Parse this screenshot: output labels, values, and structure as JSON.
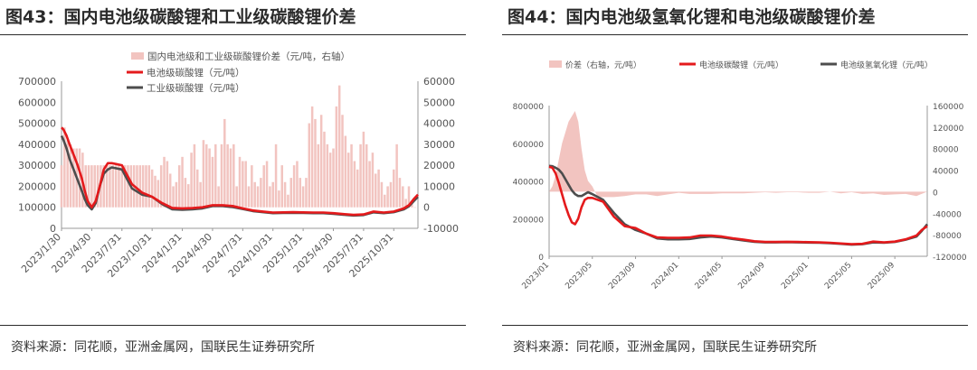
{
  "left": {
    "title": "图43：国内电池级碳酸锂和工业级碳酸锂价差",
    "source": "资料来源：同花顺，亚洲金属网，国联民生证券研究所",
    "chart_data": {
      "type": "line",
      "legend": [
        "国内电池级和工业级碳酸锂价差（元/吨，右轴）",
        "电池级碳酸锂（元/吨）",
        "工业级碳酸锂（元/吨）"
      ],
      "colors": {
        "spread": "#f2c4c0",
        "battery": "#e41a1c",
        "industrial": "#4d4d4d"
      },
      "x_ticks": [
        "2023/1/30",
        "2023/4/30",
        "2023/7/31",
        "2023/10/31",
        "2024/1/31",
        "2024/4/30",
        "2024/7/31",
        "2024/10/31",
        "2025/1/31",
        "2025/4/30",
        "2025/7/31",
        "2025/10/31"
      ],
      "y_left_ticks": [
        "0",
        "100000",
        "200000",
        "300000",
        "400000",
        "500000",
        "600000",
        "700000"
      ],
      "y_right_ticks": [
        "-10000",
        "0",
        "10000",
        "20000",
        "30000",
        "40000",
        "50000",
        "60000"
      ],
      "ylim_left": [
        0,
        700000
      ],
      "ylim_right": [
        -10000,
        60000
      ],
      "series": [
        {
          "name": "电池级碳酸锂（元/吨）",
          "axis": "left",
          "x": [
            0,
            0.2,
            0.5,
            0.8,
            1.2,
            1.6,
            2.0,
            2.3,
            2.6,
            3.0,
            3.4,
            3.8,
            4.2,
            4.6,
            5,
            6,
            7,
            8,
            9,
            10,
            11,
            12,
            13,
            14,
            15,
            16,
            17,
            18,
            19,
            20,
            21,
            22,
            23,
            24,
            25,
            26,
            27,
            28,
            29,
            30,
            31,
            32,
            33,
            34,
            34.5,
            35,
            35.4
          ],
          "values": [
            480000,
            470000,
            440000,
            400000,
            350000,
            300000,
            240000,
            180000,
            130000,
            100000,
            130000,
            200000,
            280000,
            310000,
            310000,
            300000,
            210000,
            170000,
            150000,
            120000,
            97000,
            95000,
            96000,
            100000,
            110000,
            110000,
            106000,
            95000,
            85000,
            80000,
            75000,
            76000,
            77000,
            76000,
            75000,
            75000,
            72000,
            68000,
            64000,
            66000,
            80000,
            75000,
            80000,
            95000,
            110000,
            140000,
            160000
          ]
        },
        {
          "name": "工业级碳酸锂（元/吨）",
          "axis": "left",
          "x": [
            0,
            0.2,
            0.5,
            0.8,
            1.2,
            1.6,
            2.0,
            2.3,
            2.6,
            3.0,
            3.4,
            3.8,
            4.2,
            4.6,
            5,
            6,
            7,
            8,
            9,
            10,
            11,
            12,
            13,
            14,
            15,
            16,
            17,
            18,
            19,
            20,
            21,
            22,
            23,
            24,
            25,
            26,
            27,
            28,
            29,
            30,
            31,
            32,
            33,
            34,
            34.5,
            35,
            35.4
          ],
          "values": [
            440000,
            420000,
            380000,
            330000,
            280000,
            230000,
            180000,
            140000,
            110000,
            90000,
            120000,
            200000,
            260000,
            280000,
            290000,
            280000,
            190000,
            160000,
            150000,
            115000,
            90000,
            88000,
            90000,
            95000,
            106000,
            106000,
            101000,
            92000,
            82000,
            77000,
            72000,
            73000,
            74000,
            73000,
            72000,
            72000,
            69000,
            65000,
            61000,
            63000,
            76000,
            72000,
            77000,
            90000,
            105000,
            130000,
            150000
          ]
        },
        {
          "name": "国内电池级和工业级碳酸锂价差（元/吨，右轴）",
          "axis": "right",
          "x": [
            0,
            0.3,
            0.6,
            0.9,
            1.2,
            1.5,
            1.8,
            2.1,
            2.4,
            2.7,
            3.0,
            3.3,
            3.6,
            3.9,
            4.2,
            4.5,
            4.8,
            5.1,
            5.4,
            5.7,
            6.0,
            6.3,
            6.6,
            6.9,
            7.2,
            7.5,
            7.8,
            8.1,
            8.4,
            8.7,
            9.0,
            9.3,
            9.6,
            9.9,
            10.2,
            10.5,
            10.8,
            11.1,
            11.4,
            11.7,
            12.0,
            12.3,
            12.6,
            12.9,
            13.2,
            13.5,
            13.8,
            14.1,
            14.4,
            14.7,
            15.0,
            15.3,
            15.6,
            15.9,
            16.2,
            16.5,
            16.8,
            17.1,
            17.4,
            17.7,
            18.0,
            18.3,
            18.6,
            18.9,
            19.2,
            19.5,
            19.8,
            20.1,
            20.4,
            20.7,
            21.0,
            21.3,
            21.6,
            21.9,
            22.2,
            22.5,
            22.8,
            23.1,
            23.4,
            23.7,
            24.0,
            24.3,
            24.6,
            24.9,
            25.2,
            25.5,
            25.8,
            26.1,
            26.4,
            26.7,
            27.0,
            27.3,
            27.6,
            27.9,
            28.2,
            28.5,
            28.8,
            29.1,
            29.4,
            29.7,
            30.0,
            30.3,
            30.6,
            30.9,
            31.2,
            31.5,
            31.8,
            32.1,
            32.4,
            32.7,
            33.0,
            33.3,
            33.6,
            33.9,
            34.2,
            34.5,
            34.8,
            35.1
          ],
          "values": [
            20000,
            38000,
            32000,
            30000,
            28000,
            28000,
            28000,
            26000,
            20000,
            20000,
            20000,
            20000,
            20000,
            20000,
            20000,
            20000,
            20000,
            20000,
            20000,
            20000,
            20000,
            20000,
            20000,
            20000,
            20000,
            20000,
            20000,
            20000,
            20000,
            20000,
            18000,
            15000,
            13000,
            20000,
            24000,
            22000,
            16000,
            10000,
            12000,
            20000,
            24000,
            14000,
            11000,
            26000,
            30000,
            18000,
            12000,
            32000,
            30000,
            28000,
            24000,
            30000,
            10000,
            30000,
            42000,
            30000,
            28000,
            30000,
            10000,
            24000,
            22000,
            22000,
            10000,
            20000,
            12000,
            10000,
            14000,
            20000,
            22000,
            10000,
            12000,
            30000,
            8000,
            20000,
            12000,
            6000,
            14000,
            20000,
            22000,
            14000,
            10000,
            14000,
            40000,
            48000,
            42000,
            30000,
            44000,
            36000,
            30000,
            26000,
            28000,
            48000,
            58000,
            44000,
            34000,
            26000,
            30000,
            22000,
            18000,
            30000,
            36000,
            30000,
            22000,
            26000,
            16000,
            18000,
            12000,
            6000,
            10000,
            12000,
            18000,
            30000,
            14000,
            10000,
            4000,
            10000,
            2000,
            0
          ]
        }
      ]
    }
  },
  "right": {
    "title": "图44：国内电池级氢氧化锂和电池级碳酸锂价差",
    "source": "资料来源：同花顺，亚洲金属网，国联民生证券研究所",
    "chart_data": {
      "type": "line",
      "legend": [
        "价差（右轴，元/吨）",
        "电池级碳酸锂（元/吨）",
        "电池级氢氧化锂（元/吨）"
      ],
      "colors": {
        "spread": "#f2c4c0",
        "battery": "#e41a1c",
        "hydroxide": "#4d4d4d"
      },
      "x_ticks": [
        "2023/01",
        "2023/05",
        "2023/09",
        "2024/01",
        "2024/05",
        "2024/09",
        "2025/01",
        "2025/05",
        "2025/09"
      ],
      "y_left_ticks": [
        "0",
        "200000",
        "400000",
        "600000",
        "800000"
      ],
      "y_right_ticks": [
        "-120000",
        "-80000",
        "-40000",
        "0",
        "40000",
        "80000",
        "120000",
        "160000"
      ],
      "ylim_left": [
        0,
        800000
      ],
      "ylim_right": [
        -120000,
        160000
      ],
      "series": [
        {
          "name": "电池级碳酸锂（元/吨）",
          "axis": "left",
          "x": [
            0,
            0.3,
            0.6,
            0.9,
            1.2,
            1.5,
            1.8,
            2.1,
            2.4,
            2.7,
            3.0,
            3.3,
            3.6,
            4,
            5,
            6,
            7,
            8,
            9,
            10,
            11,
            12,
            13,
            14,
            15,
            16,
            17,
            18,
            19,
            20,
            21,
            22,
            23,
            24,
            25,
            26,
            27,
            28,
            29,
            30,
            31,
            32,
            33,
            34,
            34.5,
            35
          ],
          "values": [
            475000,
            470000,
            440000,
            390000,
            330000,
            270000,
            220000,
            180000,
            170000,
            200000,
            260000,
            300000,
            310000,
            310000,
            290000,
            210000,
            160000,
            150000,
            120000,
            100000,
            98000,
            98000,
            100000,
            110000,
            110000,
            105000,
            96000,
            88000,
            80000,
            76000,
            76000,
            77000,
            76000,
            75000,
            74000,
            72000,
            68000,
            64000,
            66000,
            78000,
            74000,
            78000,
            90000,
            110000,
            140000,
            160000
          ]
        },
        {
          "name": "电池级氢氧化锂（元/吨）",
          "axis": "left",
          "x": [
            0,
            0.3,
            0.6,
            0.9,
            1.2,
            1.5,
            1.8,
            2.1,
            2.4,
            2.7,
            3.0,
            3.3,
            3.6,
            4,
            5,
            6,
            7,
            8,
            9,
            10,
            11,
            12,
            13,
            14,
            15,
            16,
            17,
            18,
            19,
            20,
            21,
            22,
            23,
            24,
            25,
            26,
            27,
            28,
            29,
            30,
            31,
            32,
            33,
            34,
            34.5,
            35
          ],
          "values": [
            480000,
            478000,
            470000,
            460000,
            440000,
            410000,
            380000,
            350000,
            330000,
            320000,
            320000,
            330000,
            340000,
            330000,
            300000,
            230000,
            170000,
            140000,
            120000,
            95000,
            90000,
            90000,
            92000,
            100000,
            105000,
            100000,
            92000,
            84000,
            77000,
            74000,
            74000,
            75000,
            74000,
            73000,
            72000,
            70000,
            66000,
            62000,
            64000,
            74000,
            72000,
            76000,
            88000,
            105000,
            135000,
            170000
          ]
        },
        {
          "name": "价差（右轴，元/吨）",
          "axis": "right",
          "x": [
            0,
            0.3,
            0.6,
            0.9,
            1.2,
            1.5,
            1.8,
            2.1,
            2.4,
            2.7,
            3.0,
            3.3,
            3.6,
            4.0,
            4.5,
            5,
            6,
            7,
            8,
            9,
            10,
            11,
            12,
            13,
            14,
            15,
            16,
            17,
            18,
            19,
            20,
            21,
            22,
            23,
            24,
            25,
            26,
            27,
            28,
            29,
            30,
            31,
            32,
            33,
            34,
            35
          ],
          "values": [
            0,
            10000,
            30000,
            60000,
            90000,
            110000,
            130000,
            140000,
            150000,
            130000,
            80000,
            40000,
            20000,
            10000,
            -10000,
            -10000,
            -10000,
            -8000,
            -5000,
            -5000,
            -8000,
            -5000,
            -2000,
            -4000,
            -4000,
            -4000,
            -3000,
            -3000,
            -3000,
            -2000,
            -1000,
            -2000,
            -1000,
            -1000,
            -2000,
            -2000,
            0,
            -3000,
            -1000,
            -4000,
            -3000,
            -6000,
            -5000,
            -4000,
            -8000,
            0
          ]
        }
      ]
    }
  }
}
